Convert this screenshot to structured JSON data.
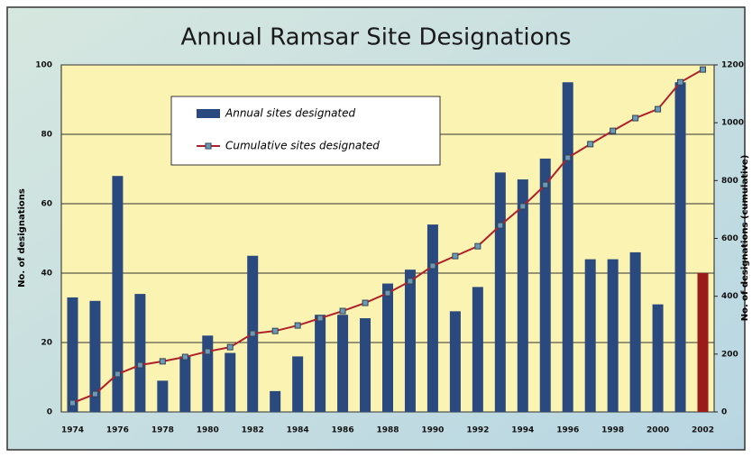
{
  "chart_data": {
    "type": "bar",
    "title": "Annual Ramsar Site Designations",
    "y_label": "No. of designations",
    "y2_label": "No. of designations (cumulative)",
    "categories": [
      "1974",
      null,
      "1976",
      null,
      "1978",
      null,
      "1980",
      null,
      "1982",
      null,
      "1984",
      null,
      "1986",
      null,
      "1988",
      null,
      "1990",
      null,
      "1992",
      null,
      "1994",
      null,
      "1996",
      null,
      "1998",
      null,
      "2000",
      null,
      "2002"
    ],
    "series": [
      {
        "name": "Annual sites designated",
        "type": "bar",
        "color": "#2a4a7f",
        "colors": [
          "#2a4a7f",
          "#2a4a7f",
          "#2a4a7f",
          "#2a4a7f",
          "#2a4a7f",
          "#2a4a7f",
          "#2a4a7f",
          "#2a4a7f",
          "#2a4a7f",
          "#2a4a7f",
          "#2a4a7f",
          "#2a4a7f",
          "#2a4a7f",
          "#2a4a7f",
          "#2a4a7f",
          "#2a4a7f",
          "#2a4a7f",
          "#2a4a7f",
          "#2a4a7f",
          "#2a4a7f",
          "#2a4a7f",
          "#2a4a7f",
          "#2a4a7f",
          "#2a4a7f",
          "#2a4a7f",
          "#2a4a7f",
          "#2a4a7f",
          "#2a4a7f",
          "#9b1b1b"
        ],
        "values": [
          33,
          32,
          68,
          34,
          9,
          16,
          22,
          17,
          45,
          6,
          16,
          28,
          28,
          27,
          37,
          41,
          54,
          29,
          36,
          69,
          67,
          73,
          95,
          44,
          44,
          46,
          31,
          95,
          40
        ]
      },
      {
        "name": "Cumulative sites designated",
        "type": "line",
        "axis": "y2",
        "color": "#b0202a",
        "marker_color": "#6a9ab8",
        "values": [
          31,
          62,
          131,
          162,
          175,
          190,
          209,
          224,
          271,
          280,
          299,
          324,
          349,
          377,
          411,
          452,
          505,
          539,
          573,
          645,
          711,
          785,
          879,
          926,
          972,
          1016,
          1047,
          1140,
          1184
        ]
      }
    ],
    "ylim": [
      0,
      100
    ],
    "yticks": [
      0,
      20,
      40,
      60,
      80,
      100
    ],
    "y2lim": [
      0,
      1200
    ],
    "y2ticks": [
      0,
      200,
      400,
      600,
      800,
      1000,
      1200
    ],
    "grid": true,
    "legend": "top-left"
  }
}
